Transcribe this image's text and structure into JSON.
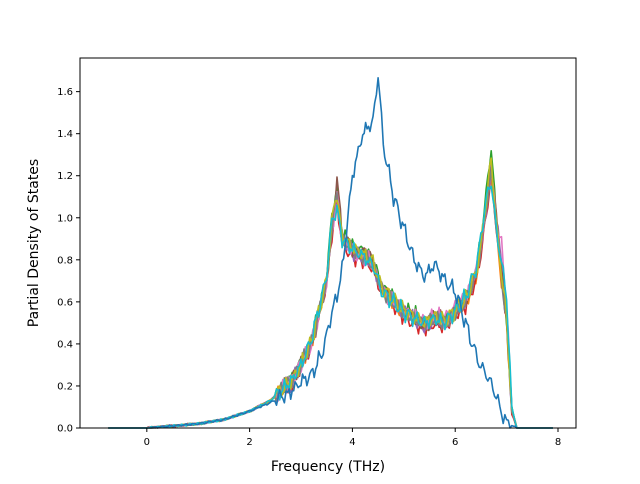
{
  "chart_data": {
    "type": "line",
    "title": "",
    "xlabel": "Frequency (THz)",
    "ylabel": "Partial Density of States",
    "xlim": [
      -1.3,
      8.35
    ],
    "ylim": [
      0,
      1.76
    ],
    "xticks": [
      0,
      2,
      4,
      6,
      8
    ],
    "yticks": [
      0.0,
      0.2,
      0.4,
      0.6,
      0.8,
      1.0,
      1.2,
      1.4,
      1.6
    ],
    "xtick_labels": [
      "0",
      "2",
      "4",
      "6",
      "8"
    ],
    "ytick_labels": [
      "0.0",
      "0.2",
      "0.4",
      "0.6",
      "0.8",
      "1.0",
      "1.2",
      "1.4",
      "1.6"
    ],
    "grid": false,
    "legend": "none",
    "x": [
      -0.75,
      0.0,
      0.5,
      1.0,
      1.5,
      2.0,
      2.4,
      2.8,
      3.0,
      3.2,
      3.4,
      3.5,
      3.6,
      3.7,
      3.8,
      4.0,
      4.2,
      4.4,
      4.5,
      4.6,
      4.8,
      5.0,
      5.2,
      5.4,
      5.6,
      5.8,
      6.0,
      6.2,
      6.4,
      6.5,
      6.6,
      6.7,
      6.8,
      6.9,
      7.0,
      7.1,
      7.2,
      7.3,
      7.9
    ],
    "series": [
      {
        "color": "#1f77b4",
        "values": [
          0,
          0,
          0.01,
          0.02,
          0.04,
          0.08,
          0.12,
          0.17,
          0.22,
          0.25,
          0.35,
          0.45,
          0.55,
          0.62,
          0.75,
          1.2,
          1.4,
          1.46,
          1.68,
          1.35,
          1.1,
          0.95,
          0.8,
          0.72,
          0.78,
          0.7,
          0.65,
          0.5,
          0.35,
          0.3,
          0.26,
          0.2,
          0.15,
          0.08,
          0.03,
          0.01,
          0,
          0,
          0
        ]
      },
      {
        "color": "#ff7f0e",
        "values": [
          0,
          0,
          0.01,
          0.02,
          0.04,
          0.08,
          0.13,
          0.22,
          0.3,
          0.4,
          0.6,
          0.7,
          0.95,
          1.12,
          0.9,
          0.85,
          0.82,
          0.78,
          0.7,
          0.65,
          0.6,
          0.55,
          0.52,
          0.5,
          0.52,
          0.5,
          0.55,
          0.6,
          0.72,
          0.85,
          1.05,
          1.2,
          0.95,
          0.7,
          0.5,
          0.08,
          0,
          0,
          0
        ]
      },
      {
        "color": "#2ca02c",
        "values": [
          0,
          0,
          0.01,
          0.02,
          0.04,
          0.08,
          0.13,
          0.23,
          0.31,
          0.42,
          0.62,
          0.72,
          1.0,
          1.15,
          0.92,
          0.86,
          0.84,
          0.8,
          0.72,
          0.66,
          0.62,
          0.56,
          0.54,
          0.5,
          0.53,
          0.52,
          0.56,
          0.62,
          0.75,
          0.9,
          1.1,
          1.34,
          1.0,
          0.75,
          0.52,
          0.1,
          0,
          0,
          0
        ]
      },
      {
        "color": "#d62728",
        "values": [
          0,
          0,
          0.01,
          0.02,
          0.04,
          0.08,
          0.13,
          0.21,
          0.29,
          0.38,
          0.58,
          0.68,
          0.92,
          1.08,
          0.88,
          0.82,
          0.8,
          0.76,
          0.69,
          0.64,
          0.58,
          0.53,
          0.5,
          0.48,
          0.5,
          0.48,
          0.53,
          0.58,
          0.7,
          0.82,
          1.0,
          1.22,
          0.96,
          0.72,
          0.5,
          0.07,
          0,
          0,
          0
        ]
      },
      {
        "color": "#9467bd",
        "values": [
          0,
          0,
          0.01,
          0.02,
          0.04,
          0.08,
          0.13,
          0.22,
          0.3,
          0.4,
          0.6,
          0.7,
          0.97,
          1.1,
          0.9,
          0.84,
          0.83,
          0.77,
          0.71,
          0.65,
          0.6,
          0.55,
          0.52,
          0.49,
          0.52,
          0.5,
          0.55,
          0.6,
          0.73,
          0.86,
          1.04,
          1.25,
          0.98,
          0.8,
          0.55,
          0.08,
          0,
          0,
          0
        ]
      },
      {
        "color": "#8c564b",
        "values": [
          0,
          0,
          0.01,
          0.02,
          0.04,
          0.08,
          0.13,
          0.22,
          0.3,
          0.41,
          0.61,
          0.71,
          0.96,
          1.19,
          0.91,
          0.85,
          0.83,
          0.79,
          0.7,
          0.65,
          0.61,
          0.55,
          0.52,
          0.5,
          0.52,
          0.51,
          0.55,
          0.61,
          0.74,
          0.88,
          1.06,
          1.26,
          0.99,
          0.76,
          0.53,
          0.09,
          0,
          0,
          0
        ]
      },
      {
        "color": "#e377c2",
        "values": [
          0,
          0,
          0.01,
          0.02,
          0.04,
          0.08,
          0.13,
          0.22,
          0.3,
          0.4,
          0.6,
          0.7,
          0.94,
          1.1,
          0.89,
          0.84,
          0.82,
          0.78,
          0.7,
          0.65,
          0.6,
          0.56,
          0.53,
          0.51,
          0.53,
          0.52,
          0.57,
          0.62,
          0.75,
          0.88,
          1.05,
          1.22,
          0.97,
          0.88,
          0.6,
          0.09,
          0,
          0,
          0
        ]
      },
      {
        "color": "#7f7f7f",
        "values": [
          0,
          0,
          0.01,
          0.02,
          0.04,
          0.08,
          0.13,
          0.22,
          0.3,
          0.4,
          0.6,
          0.7,
          0.95,
          1.1,
          0.9,
          0.85,
          0.82,
          0.78,
          0.7,
          0.65,
          0.6,
          0.55,
          0.52,
          0.5,
          0.52,
          0.5,
          0.55,
          0.6,
          0.72,
          0.86,
          1.04,
          1.2,
          0.96,
          0.72,
          0.5,
          0.08,
          0,
          0,
          0
        ]
      },
      {
        "color": "#bcbd22",
        "values": [
          0,
          0,
          0.01,
          0.02,
          0.04,
          0.08,
          0.13,
          0.22,
          0.3,
          0.41,
          0.61,
          0.71,
          0.98,
          1.12,
          0.91,
          0.86,
          0.83,
          0.79,
          0.71,
          0.66,
          0.61,
          0.56,
          0.53,
          0.5,
          0.53,
          0.51,
          0.56,
          0.61,
          0.74,
          0.87,
          1.07,
          1.28,
          0.98,
          0.74,
          0.52,
          0.09,
          0,
          0,
          0
        ]
      },
      {
        "color": "#17becf",
        "values": [
          0,
          0,
          0.01,
          0.02,
          0.04,
          0.08,
          0.13,
          0.22,
          0.3,
          0.42,
          0.62,
          0.72,
          0.98,
          1.05,
          0.9,
          0.85,
          0.82,
          0.77,
          0.7,
          0.64,
          0.6,
          0.55,
          0.52,
          0.5,
          0.52,
          0.5,
          0.56,
          0.62,
          0.76,
          0.9,
          1.08,
          1.18,
          0.95,
          0.78,
          0.62,
          0.1,
          0,
          0,
          0
        ]
      }
    ]
  }
}
